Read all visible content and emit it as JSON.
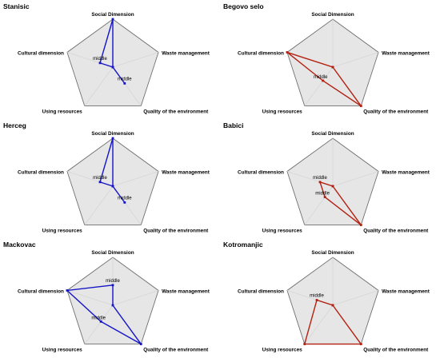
{
  "axes": [
    "Social Dimension",
    "Waste management",
    "Quality of the environment",
    "Using resources",
    "Cultural dimension"
  ],
  "level_labels": [
    "middle"
  ],
  "colors": {
    "blue": "#1515c8",
    "red": "#b32010",
    "pentagon_fill": "#e6e6e6",
    "pentagon_stroke": "#707070",
    "spoke": "#d6d6d6"
  },
  "chart_data": [
    {
      "type": "radar",
      "title": "Stanisic",
      "color": "blue",
      "axes": [
        "Social Dimension",
        "Waste management",
        "Quality of the environment",
        "Using resources",
        "Cultural dimension"
      ],
      "values": [
        1.0,
        0.0,
        0.42,
        0.0,
        0.28
      ],
      "annotations": [
        {
          "axis": "Cultural dimension",
          "text": "middle"
        },
        {
          "axis": "Quality of the environment",
          "text": "middle"
        }
      ],
      "rlim": [
        0,
        1
      ]
    },
    {
      "type": "radar",
      "title": "Begovo selo",
      "color": "red",
      "axes": [
        "Social Dimension",
        "Waste management",
        "Quality of the environment",
        "Using resources",
        "Cultural dimension"
      ],
      "values": [
        0.0,
        0.0,
        1.0,
        0.35,
        1.0
      ],
      "annotations": [
        {
          "axis": "Using resources",
          "text": "middle"
        }
      ],
      "rlim": [
        0,
        1
      ]
    },
    {
      "type": "radar",
      "title": "Herceg",
      "color": "blue",
      "axes": [
        "Social Dimension",
        "Waste management",
        "Quality of the environment",
        "Using resources",
        "Cultural dimension"
      ],
      "values": [
        1.0,
        0.0,
        0.42,
        0.0,
        0.28
      ],
      "annotations": [
        {
          "axis": "Cultural dimension",
          "text": "middle"
        },
        {
          "axis": "Quality of the environment",
          "text": "middle"
        }
      ],
      "rlim": [
        0,
        1
      ]
    },
    {
      "type": "radar",
      "title": "Babici",
      "color": "red",
      "axes": [
        "Social Dimension",
        "Waste management",
        "Quality of the environment",
        "Using resources",
        "Cultural dimension"
      ],
      "values": [
        0.0,
        0.0,
        1.0,
        0.28,
        0.28
      ],
      "annotations": [
        {
          "axis": "Cultural dimension",
          "text": "middle"
        },
        {
          "axis": "Using resources",
          "text": "middle"
        }
      ],
      "rlim": [
        0,
        1
      ]
    },
    {
      "type": "radar",
      "title": "Mackovac",
      "color": "blue",
      "axes": [
        "Social Dimension",
        "Waste management",
        "Quality of the environment",
        "Using resources",
        "Cultural dimension"
      ],
      "values": [
        0.42,
        0.0,
        1.0,
        0.42,
        1.0
      ],
      "annotations": [
        {
          "axis": "Social Dimension",
          "text": "middle"
        },
        {
          "axis": "Using resources",
          "text": "middle"
        }
      ],
      "rlim": [
        0,
        1
      ]
    },
    {
      "type": "radar",
      "title": "Kotromanjic",
      "color": "red",
      "axes": [
        "Social Dimension",
        "Waste management",
        "Quality of the environment",
        "Using resources",
        "Cultural dimension"
      ],
      "values": [
        0.0,
        0.0,
        1.0,
        1.0,
        0.35
      ],
      "annotations": [
        {
          "axis": "Cultural dimension",
          "text": "middle"
        }
      ],
      "rlim": [
        0,
        1
      ]
    }
  ]
}
